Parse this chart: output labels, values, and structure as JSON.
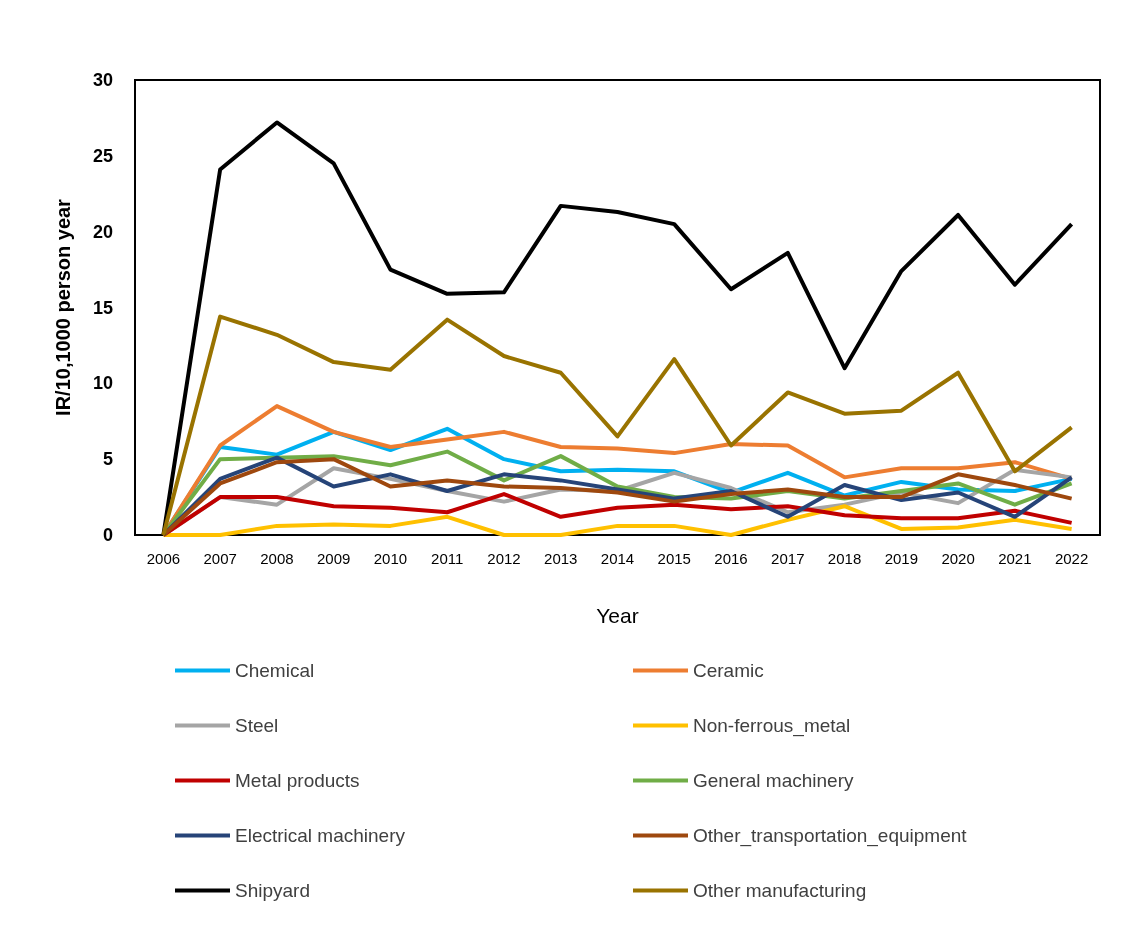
{
  "chart_data": {
    "type": "line",
    "xlabel": "Year",
    "ylabel": "IR/10,1000 person year",
    "categories": [
      "2006",
      "2007",
      "2008",
      "2009",
      "2010",
      "2011",
      "2012",
      "2013",
      "2014",
      "2015",
      "2016",
      "2017",
      "2018",
      "2019",
      "2020",
      "2021",
      "2022"
    ],
    "ylim": [
      0,
      30
    ],
    "yticks": [
      0,
      5,
      10,
      15,
      20,
      25,
      30
    ],
    "grid": false,
    "legend": "bottom",
    "marker": "none",
    "line_style": "solid",
    "series": [
      {
        "name": "Chemical",
        "color": "#00b0f0",
        "values": [
          0,
          5.8,
          5.3,
          6.8,
          5.6,
          7.0,
          5.0,
          4.2,
          4.3,
          4.2,
          2.8,
          4.1,
          2.6,
          3.5,
          3.0,
          2.9,
          3.7
        ]
      },
      {
        "name": "Ceramic",
        "color": "#ed7d31",
        "values": [
          0,
          5.9,
          8.5,
          6.8,
          5.8,
          6.3,
          6.8,
          5.8,
          5.7,
          5.4,
          6.0,
          5.9,
          3.8,
          4.4,
          4.4,
          4.8,
          3.7
        ]
      },
      {
        "name": "Steel",
        "color": "#a5a5a5",
        "values": [
          0,
          2.5,
          2.0,
          4.4,
          3.7,
          2.9,
          2.2,
          3.0,
          2.9,
          4.1,
          3.1,
          1.5,
          2.0,
          2.8,
          2.1,
          4.3,
          3.8
        ]
      },
      {
        "name": "Non-ferrous_metal",
        "color": "#ffc000",
        "values": [
          0,
          0,
          0.6,
          0.7,
          0.6,
          1.2,
          0,
          0,
          0.6,
          0.6,
          0,
          1.0,
          1.9,
          0.4,
          0.5,
          1.0,
          0.4
        ]
      },
      {
        "name": "Metal products",
        "color": "#c00000",
        "values": [
          0,
          2.5,
          2.5,
          1.9,
          1.8,
          1.5,
          2.7,
          1.2,
          1.8,
          2.0,
          1.7,
          1.9,
          1.3,
          1.1,
          1.1,
          1.6,
          0.8
        ]
      },
      {
        "name": "General machinery",
        "color": "#70ad47",
        "values": [
          0,
          5.0,
          5.1,
          5.2,
          4.6,
          5.5,
          3.6,
          5.2,
          3.2,
          2.5,
          2.4,
          2.9,
          2.4,
          2.9,
          3.4,
          2.0,
          3.4
        ]
      },
      {
        "name": "Electrical machinery",
        "color": "#264478",
        "values": [
          0,
          3.7,
          5.1,
          3.2,
          4.0,
          2.9,
          4.0,
          3.6,
          3.0,
          2.4,
          2.9,
          1.2,
          3.3,
          2.3,
          2.8,
          1.2,
          3.8
        ]
      },
      {
        "name": "Other_transportation_equipment",
        "color": "#9e480e",
        "values": [
          0,
          3.4,
          4.8,
          5.0,
          3.2,
          3.6,
          3.2,
          3.1,
          2.8,
          2.2,
          2.7,
          3.0,
          2.5,
          2.5,
          4.0,
          3.3,
          2.4
        ]
      },
      {
        "name": "Shipyard",
        "color": "#000000",
        "values": [
          0,
          24.1,
          27.2,
          24.5,
          17.5,
          15.9,
          16.0,
          21.7,
          21.3,
          20.5,
          16.2,
          18.6,
          11.0,
          17.4,
          21.1,
          16.5,
          20.5
        ]
      },
      {
        "name": "Other manufacturing",
        "color": "#997300",
        "values": [
          0,
          14.4,
          13.2,
          11.4,
          10.9,
          14.2,
          11.8,
          10.7,
          6.5,
          11.6,
          5.9,
          9.4,
          8.0,
          8.2,
          10.7,
          4.2,
          7.1
        ]
      }
    ]
  }
}
